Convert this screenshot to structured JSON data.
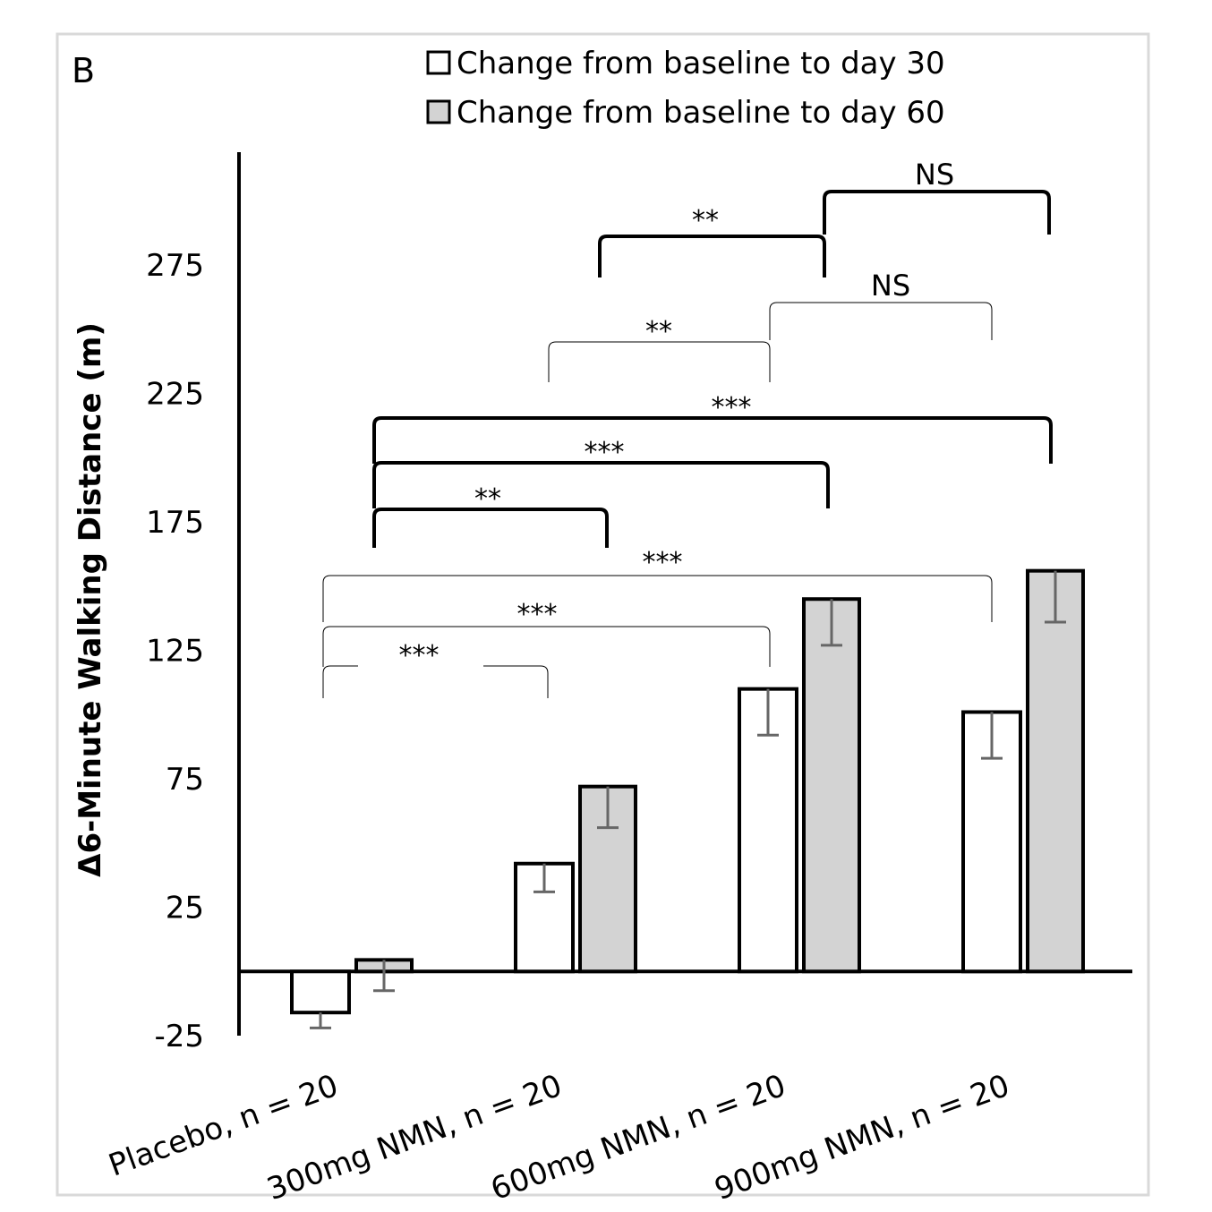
{
  "chart_data": {
    "type": "bar",
    "panel_label": "B",
    "y_label": "Δ6-Minute Walking Distance (m)",
    "categories": [
      "Placebo, n = 20",
      "300mg NMN, n = 20",
      "600mg NMN, n = 20",
      "900mg NMN, n = 20"
    ],
    "series": [
      {
        "name": "Change from baseline to day 30",
        "color": "#ffffff",
        "values": [
          -16,
          42,
          110,
          101
        ],
        "errors": [
          6,
          11,
          18,
          18
        ]
      },
      {
        "name": "Change from baseline to day 60",
        "color": "#d3d3d3",
        "values": [
          4.5,
          72,
          145,
          156
        ],
        "errors": [
          12,
          16,
          18,
          20
        ]
      }
    ],
    "ylim": [
      -25,
      319
    ],
    "yticks": [
      -25,
      25,
      75,
      125,
      175,
      225,
      275
    ],
    "annotations": [
      "***",
      "***",
      "***",
      "**",
      "NS",
      "**",
      "***",
      "***",
      "**",
      "NS"
    ]
  }
}
